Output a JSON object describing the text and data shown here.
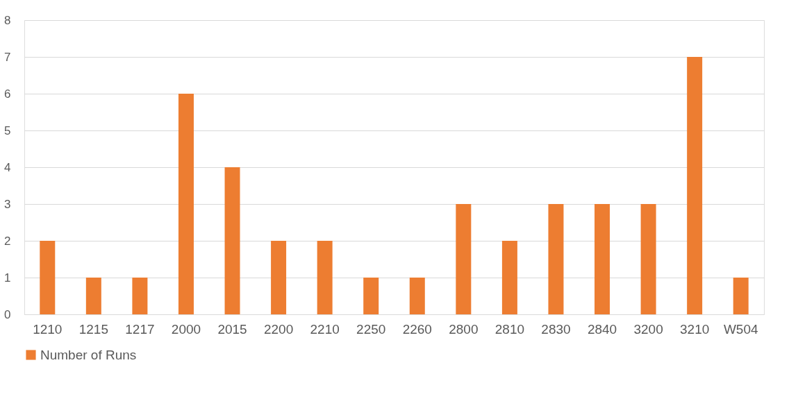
{
  "chart_data": {
    "type": "bar",
    "categories": [
      "1210",
      "1215",
      "1217",
      "2000",
      "2015",
      "2200",
      "2210",
      "2250",
      "2260",
      "2800",
      "2810",
      "2830",
      "2840",
      "3200",
      "3210",
      "W504"
    ],
    "series": [
      {
        "name": "Number of Runs",
        "color": "#ed7d31",
        "values": [
          2,
          1,
          1,
          6,
          4,
          2,
          2,
          1,
          1,
          3,
          2,
          3,
          3,
          3,
          7,
          1
        ]
      }
    ],
    "ylim": [
      0,
      8
    ],
    "yticks": [
      0,
      1,
      2,
      3,
      4,
      5,
      6,
      7,
      8
    ],
    "grid": "y",
    "legend": "bottom"
  }
}
